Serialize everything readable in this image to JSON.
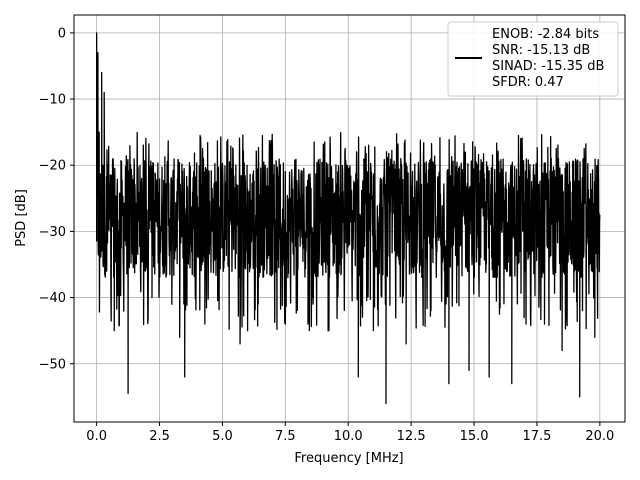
{
  "chart_data": {
    "type": "line",
    "xlabel": "Frequency [MHz]",
    "ylabel": "PSD [dB]",
    "xlim": [
      -0.9,
      21.0
    ],
    "ylim": [
      -58.8,
      2.7
    ],
    "xticks": [
      0.0,
      2.5,
      5.0,
      7.5,
      10.0,
      12.5,
      15.0,
      17.5,
      20.0
    ],
    "xtick_labels": [
      "0.0",
      "2.5",
      "5.0",
      "7.5",
      "10.0",
      "12.5",
      "15.0",
      "17.5",
      "20.0"
    ],
    "yticks": [
      0,
      -10,
      -20,
      -30,
      -40,
      -50
    ],
    "ytick_labels": [
      "0",
      "−10",
      "−20",
      "−30",
      "−40",
      "−50"
    ],
    "grid": true,
    "legend_position": "top-right",
    "series": [
      {
        "name": "ENOB: -2.84 bits\nSNR: -15.13 dB\nSINAD: -15.35 dB\nSFDR: 0.47",
        "color": "#000000",
        "x_range": [
          0.0,
          20.0
        ],
        "noise_band_db": [
          -37,
          -19
        ],
        "approx_peak_db": 0,
        "notable_points": [
          {
            "x": 0.0,
            "y": 0
          },
          {
            "x": 0.05,
            "y": -3
          },
          {
            "x": 0.1,
            "y": -15
          },
          {
            "x": 0.15,
            "y": -26
          },
          {
            "x": 0.2,
            "y": -6
          },
          {
            "x": 0.25,
            "y": -20
          },
          {
            "x": 0.3,
            "y": -9
          },
          {
            "x": 0.4,
            "y": -36
          },
          {
            "x": 0.7,
            "y": -45
          },
          {
            "x": 1.25,
            "y": -54.5
          },
          {
            "x": 2.2,
            "y": -40
          },
          {
            "x": 3.3,
            "y": -46
          },
          {
            "x": 3.5,
            "y": -52
          },
          {
            "x": 4.3,
            "y": -44
          },
          {
            "x": 5.7,
            "y": -47
          },
          {
            "x": 6.0,
            "y": -45
          },
          {
            "x": 6.4,
            "y": -40
          },
          {
            "x": 7.5,
            "y": -44
          },
          {
            "x": 8.4,
            "y": -44
          },
          {
            "x": 9.2,
            "y": -45
          },
          {
            "x": 10.4,
            "y": -52
          },
          {
            "x": 11.0,
            "y": -45
          },
          {
            "x": 11.5,
            "y": -56
          },
          {
            "x": 12.3,
            "y": -47
          },
          {
            "x": 14.0,
            "y": -53
          },
          {
            "x": 14.8,
            "y": -51
          },
          {
            "x": 15.6,
            "y": -52
          },
          {
            "x": 16.5,
            "y": -53
          },
          {
            "x": 17.8,
            "y": -44
          },
          {
            "x": 18.5,
            "y": -48
          },
          {
            "x": 19.2,
            "y": -55
          },
          {
            "x": 19.8,
            "y": -46
          }
        ]
      }
    ]
  }
}
